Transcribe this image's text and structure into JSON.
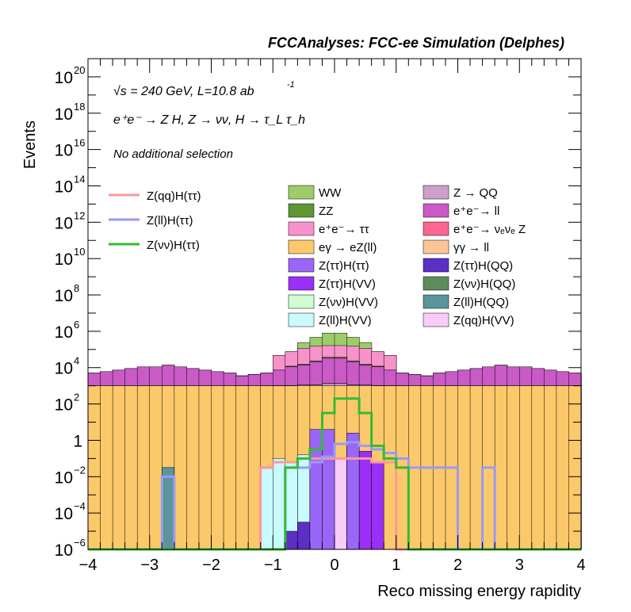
{
  "chart_data": {
    "type": "stacked-histogram",
    "title": "FCCAnalyses: FCC-ee Simulation (Delphes)",
    "xlabel": "Reco missing energy rapidity",
    "ylabel": "Events",
    "log_y": true,
    "xlim": [
      -4,
      4
    ],
    "ylim_exp": [
      -6,
      21
    ],
    "bins": 40,
    "x_ticks": [
      "−4",
      "−3",
      "−2",
      "−1",
      "0",
      "1",
      "2",
      "3",
      "4"
    ],
    "y_ticks": [
      {
        "base": "10",
        "exp": "20",
        "e": 20
      },
      {
        "base": "10",
        "exp": "18",
        "e": 18
      },
      {
        "base": "10",
        "exp": "16",
        "e": 16
      },
      {
        "base": "10",
        "exp": "14",
        "e": 14
      },
      {
        "base": "10",
        "exp": "12",
        "e": 12
      },
      {
        "base": "10",
        "exp": "10",
        "e": 10
      },
      {
        "base": "10",
        "exp": "8",
        "e": 8
      },
      {
        "base": "10",
        "exp": "6",
        "e": 6
      },
      {
        "base": "10",
        "exp": "4",
        "e": 4
      },
      {
        "base": "10",
        "exp": "2",
        "e": 2
      },
      {
        "base": "1",
        "exp": "",
        "e": 0
      },
      {
        "base": "10",
        "exp": "−2",
        "e": -2
      },
      {
        "base": "10",
        "exp": "−4",
        "e": -4
      },
      {
        "base": "10",
        "exp": "−6",
        "e": -6
      }
    ],
    "annotations": {
      "line1": "√s = 240 GeV, L=10.8 ab",
      "line1_sup": "-1",
      "line2": "e⁺e⁻ → Z H, Z → νν, H → τ_L τ_h",
      "line3": "No additional selection"
    },
    "legend_position": "upper-middle",
    "stack_order_bottom_to_top": [
      "eγ → eZ(ll)",
      "Z → QQ",
      "e⁺e⁻ → ν_e ν_e Z",
      "e⁺e⁻ → ll",
      "Z(νν)H(VV)",
      "ZZ",
      "e⁺e⁻ → ττ",
      "WW"
    ],
    "stacked_series": [
      {
        "name": "eγ → eZ(ll)",
        "color": "#fcc96a",
        "log10": [
          3.0,
          3.0,
          3.0,
          3.0,
          3.0,
          3.0,
          3.0,
          3.0,
          3.0,
          3.0,
          3.0,
          3.0,
          3.0,
          3.0,
          3.0,
          3.0,
          3.0,
          3.0,
          3.0,
          3.0,
          3.0,
          3.0,
          3.0,
          3.0,
          3.0,
          3.0,
          3.0,
          3.0,
          3.0,
          3.0,
          3.0,
          3.0,
          3.0,
          3.0,
          3.0,
          3.0,
          3.0,
          3.0,
          3.0,
          3.0
        ]
      },
      {
        "name": "Z → QQ",
        "color": "#cd9fcb",
        "log10": [
          -6,
          -6,
          -6,
          -6,
          0.8,
          -6,
          -6,
          -6,
          -6,
          -6,
          -6,
          -6,
          0.8,
          -6,
          1.0,
          1.2,
          1.5,
          2.0,
          2.1,
          2.5,
          2.5,
          2.1,
          2.0,
          1.5,
          1.2,
          1.0,
          -6,
          -6,
          -6,
          0.8,
          -6,
          -6,
          -6,
          -6,
          -6,
          -6,
          -6,
          -6,
          -6,
          -6
        ]
      },
      {
        "name": "e⁺e⁻ → ν_e ν_e Z",
        "color": "#fd6690",
        "log10": [
          -6,
          -6,
          -6,
          -6,
          -6,
          -6,
          -6,
          -6,
          -6,
          -6,
          -6,
          -6,
          -6,
          -6,
          -6,
          -0.6,
          0.0,
          0.6,
          1.2,
          1.5,
          1.5,
          1.2,
          0.6,
          0.0,
          -0.6,
          -6,
          -6,
          -6,
          -6,
          -6,
          -6,
          -6,
          -6,
          -6,
          -6,
          -6,
          -6,
          -6,
          -6,
          -6
        ]
      },
      {
        "name": "e⁺e⁻ → ll",
        "color": "#c95ac6",
        "log10": [
          3.6,
          3.7,
          3.8,
          3.9,
          4.0,
          4.0,
          4.1,
          4.0,
          3.9,
          3.8,
          3.7,
          3.6,
          3.4,
          3.5,
          3.6,
          3.8,
          4.0,
          4.1,
          4.3,
          4.5,
          4.5,
          4.3,
          4.1,
          4.0,
          3.8,
          3.6,
          3.5,
          3.4,
          3.6,
          3.7,
          3.8,
          3.9,
          4.0,
          4.1,
          4.0,
          4.0,
          3.9,
          3.8,
          3.7,
          3.6
        ]
      },
      {
        "name": "Z(νν)H(VV)",
        "color": "#d0fdd2",
        "log10": [
          -6,
          -6,
          -6,
          -6,
          -6,
          -6,
          -6,
          -6,
          -6,
          -6,
          -6,
          -6,
          -6,
          -6,
          -6,
          -6,
          -1,
          0.5,
          1.5,
          2.2,
          2.2,
          1.5,
          0.5,
          -1,
          -6,
          -6,
          -6,
          -6,
          -6,
          -6,
          -6,
          -6,
          -6,
          -6,
          -6,
          -6,
          -6,
          -6,
          -6,
          -6
        ]
      },
      {
        "name": "ZZ",
        "color": "#5f9535",
        "log10": [
          -6,
          -6,
          -6,
          -6,
          -6,
          -6,
          -6,
          -6,
          -6,
          -6,
          -6,
          -6,
          -6,
          -6,
          -6,
          -6,
          3.0,
          3.2,
          3.4,
          3.6,
          3.6,
          3.4,
          3.2,
          3.0,
          -6,
          -6,
          -6,
          -6,
          -6,
          -6,
          -6,
          -6,
          -6,
          -6,
          -6,
          -6,
          -6,
          -6,
          -6,
          -6
        ]
      },
      {
        "name": "e⁺e⁻ → ττ",
        "color": "#f892cb",
        "log10": [
          -6,
          -6,
          -6,
          -6,
          -6,
          -6,
          -6,
          -6,
          -6,
          -6,
          -6,
          -6,
          -6,
          -6,
          -6,
          4.6,
          4.8,
          5.0,
          5.1,
          5.1,
          5.1,
          5.1,
          5.0,
          4.8,
          4.6,
          -6,
          -6,
          -6,
          -6,
          -6,
          -6,
          -6,
          -6,
          -6,
          -6,
          -6,
          -6,
          -6,
          -6,
          -6
        ]
      },
      {
        "name": "WW",
        "color": "#9ccd68",
        "log10": [
          -6,
          -6,
          -6,
          -6,
          -6,
          -6,
          -6,
          -6,
          -6,
          -6,
          -6,
          -6,
          -6,
          -6,
          -6,
          -6,
          -6,
          5.1,
          5.5,
          5.8,
          5.8,
          5.5,
          5.1,
          -6,
          -6,
          -6,
          -6,
          -6,
          -6,
          -6,
          -6,
          -6,
          -6,
          -6,
          -6,
          -6,
          -6,
          -6,
          -6,
          -6
        ]
      }
    ],
    "line_series": [
      {
        "name": "Z(qq)H(ττ)",
        "color": "#f9999a",
        "log10": [
          -6,
          -6,
          -6,
          -6,
          -6,
          -6,
          -6,
          -6,
          -6,
          -6,
          -6,
          -6,
          -6,
          -6,
          -1.5,
          -1.2,
          -1.2,
          -1.0,
          -1.0,
          -1.0,
          -1.0,
          -1.0,
          -1.0,
          -1.2,
          -1.2,
          -6,
          -6,
          -6,
          -6,
          -6,
          -6,
          -6,
          -6,
          -6,
          -6,
          -6,
          -6,
          -6,
          -6,
          -6
        ]
      },
      {
        "name": "Z(ll)H(ττ)",
        "color": "#9999f9",
        "log10": [
          -6,
          -6,
          -6,
          -6,
          -6,
          -6,
          -2,
          -6,
          -6,
          -6,
          -6,
          -6,
          -6,
          -6,
          -6,
          -6,
          -1.5,
          -1.5,
          -1.2,
          -0.9,
          -0.2,
          -0.1,
          -0.3,
          -0.5,
          -0.7,
          -1.0,
          -1.5,
          -1.5,
          -1.5,
          -1.5,
          -6,
          -6,
          -1.5,
          -6,
          -6,
          -6,
          -6,
          -6,
          -6,
          -6
        ]
      },
      {
        "name": "Z(νν)H(ττ)",
        "color": "#33bb33",
        "log10": [
          -6,
          -6,
          -6,
          -6,
          -6,
          -6,
          -6,
          -6,
          -6,
          -6,
          -6,
          -6,
          -6,
          -6,
          -6,
          -6,
          -1.5,
          -1.0,
          -0.5,
          1.5,
          2.3,
          2.3,
          1.5,
          -0.3,
          -1.0,
          -1.5,
          -6,
          -6,
          -6,
          -6,
          -6,
          -6,
          -6,
          -6,
          -6,
          -6,
          -6,
          -6,
          -6,
          -6
        ]
      }
    ],
    "overlay_series": [
      {
        "name": "Z(ll)H(QQ)",
        "color": "#5b9599",
        "bins": [
          [
            6,
            -1.5
          ]
        ]
      },
      {
        "name": "Z(νν)H(QQ)",
        "color": "#5d8c5d",
        "bins": [
          [
            19,
            -0.3
          ],
          [
            20,
            -1.0
          ]
        ]
      },
      {
        "name": "Z(qq)H(VV)",
        "color": "#f9cbf8",
        "bins": [
          [
            20,
            -1.0
          ],
          [
            21,
            -1.0
          ],
          [
            22,
            -1.3
          ]
        ]
      },
      {
        "name": "Z(ll)H(VV)",
        "color": "#c9fafd",
        "bins": [
          [
            14,
            -1.5
          ],
          [
            15,
            -1.0
          ],
          [
            16,
            -1.2
          ],
          [
            17,
            -0.8
          ]
        ]
      },
      {
        "name": "Z(ττ)H(QQ)",
        "color": "#5c2fc6",
        "bins": [
          [
            16,
            -5
          ],
          [
            17,
            -4.5
          ],
          [
            18,
            -4.8
          ],
          [
            22,
            -5
          ]
        ]
      },
      {
        "name": "Z(ττ)H(VV)",
        "color": "#9a2ff8",
        "bins": [
          [
            18,
            0.2
          ],
          [
            21,
            0.0
          ],
          [
            22,
            -0.6
          ],
          [
            23,
            -1.2
          ]
        ]
      },
      {
        "name": "Z(ττ)H(ττ)",
        "color": "#9966f8",
        "bins": [
          [
            18,
            0.6
          ],
          [
            19,
            0.6
          ],
          [
            21,
            0.4
          ]
        ]
      }
    ],
    "legend_fill": [
      [
        "WW",
        "#9ccd68"
      ],
      [
        "ZZ",
        "#5f9535"
      ],
      [
        "e⁺e⁻→ ττ",
        "#f892cb"
      ],
      [
        "eγ → eZ(ll)",
        "#fcc96a"
      ],
      [
        "Z(ττ)H(ττ)",
        "#9966f8"
      ],
      [
        "Z(ττ)H(VV)",
        "#9a2ff8"
      ],
      [
        "Z(νν)H(VV)",
        "#d0fdd2"
      ],
      [
        "Z(ll)H(VV)",
        "#c9fafd"
      ],
      [
        "Z → QQ",
        "#cd9fcb"
      ],
      [
        "e⁺e⁻→ ll",
        "#c95ac6"
      ],
      [
        "e⁺e⁻→ νₑνₑ Z",
        "#fd6690"
      ],
      [
        "γγ → ll",
        "#fdc596"
      ],
      [
        "Z(ττ)H(QQ)",
        "#5c2fc6"
      ],
      [
        "Z(νν)H(QQ)",
        "#5d8c5d"
      ],
      [
        "Z(ll)H(QQ)",
        "#5b9599"
      ],
      [
        "Z(qq)H(VV)",
        "#f9cbf8"
      ]
    ],
    "legend_lines": [
      [
        "Z(qq)H(ττ)",
        "#f9999a"
      ],
      [
        "Z(ll)H(ττ)",
        "#9999f9"
      ],
      [
        "Z(νν)H(ττ)",
        "#33bb33"
      ]
    ]
  }
}
